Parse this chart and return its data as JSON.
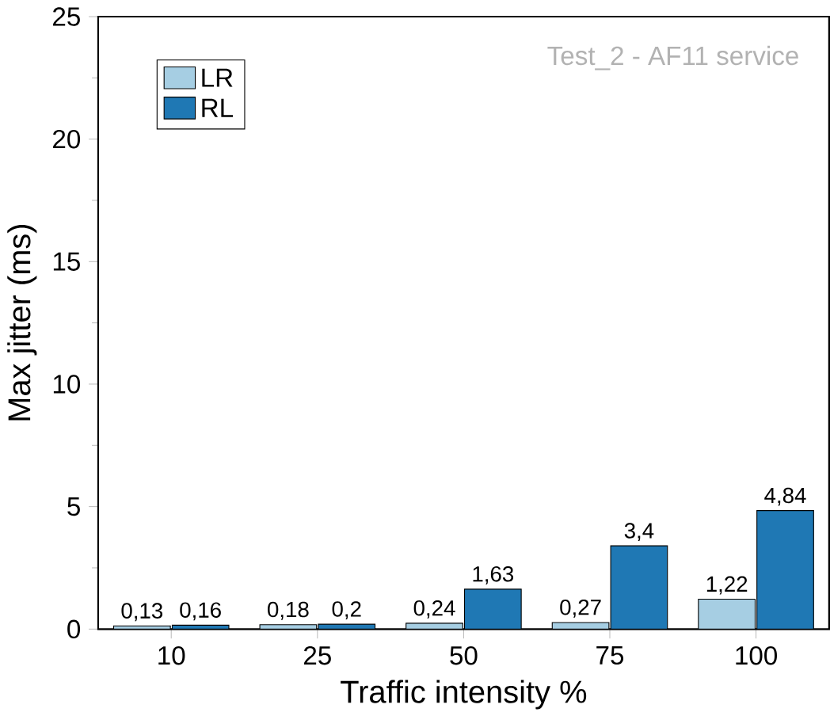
{
  "chart_data": {
    "type": "bar",
    "xlabel": "Traffic intensity %",
    "ylabel": "Max jitter (ms)",
    "categories": [
      "10",
      "25",
      "50",
      "75",
      "100"
    ],
    "series": [
      {
        "name": "LR",
        "color": "#a6cee3",
        "values": [
          0.13,
          0.18,
          0.24,
          0.27,
          1.22
        ],
        "value_labels": [
          "0,13",
          "0,18",
          "0,24",
          "0,27",
          "1,22"
        ]
      },
      {
        "name": "RL",
        "color": "#1f78b4",
        "values": [
          0.16,
          0.2,
          1.63,
          3.4,
          4.84
        ],
        "value_labels": [
          "0,16",
          "0,2",
          "1,63",
          "3,4",
          "4,84"
        ]
      }
    ],
    "ylim": [
      0,
      25
    ],
    "yticks": [
      0,
      5,
      10,
      15,
      20,
      25
    ],
    "legend": "top left",
    "grid": false,
    "annotations": [
      "Test_2 - AF11 service"
    ]
  }
}
